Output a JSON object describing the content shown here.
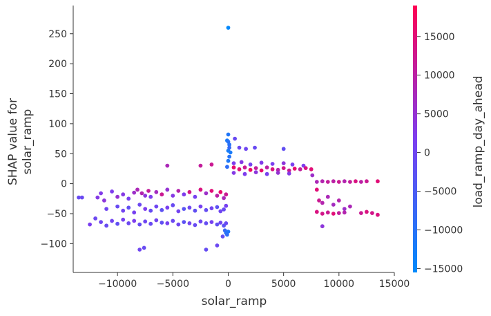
{
  "chart_data": {
    "type": "scatter",
    "title": "",
    "xlabel": "solar_ramp",
    "ylabel_lines": [
      "SHAP value for",
      "solar_ramp"
    ],
    "xlim": [
      -14000,
      15000
    ],
    "ylim": [
      -148,
      297
    ],
    "xticks": [
      -10000,
      -5000,
      0,
      5000,
      10000,
      15000
    ],
    "yticks": [
      -100,
      -50,
      0,
      50,
      100,
      150,
      200,
      250
    ],
    "grid": false,
    "colorbar": {
      "label": "load_ramp_day_ahead",
      "range": [
        -15500,
        19000
      ],
      "ticks": [
        -15000,
        -10000,
        -5000,
        0,
        5000,
        10000,
        15000
      ],
      "colors": [
        "#008afb",
        "#7c3ef0",
        "#ff0052"
      ]
    },
    "series": [
      {
        "points": [
          [
            -13500,
            -23,
            -1000
          ],
          [
            -13200,
            -23,
            -800
          ],
          [
            -11800,
            -23,
            3000
          ],
          [
            -11500,
            -16,
            2500
          ],
          [
            -11200,
            -28,
            4000
          ],
          [
            -10500,
            -13,
            2000
          ],
          [
            -10000,
            -22,
            5000
          ],
          [
            -9500,
            -18,
            3000
          ],
          [
            -9000,
            -25,
            1500
          ],
          [
            -8500,
            -15,
            6000
          ],
          [
            -8200,
            -10,
            8000
          ],
          [
            -7800,
            -16,
            9000
          ],
          [
            -7500,
            -20,
            4000
          ],
          [
            -7200,
            -12,
            11000
          ],
          [
            -7000,
            -22,
            2000
          ],
          [
            -6500,
            -14,
            7000
          ],
          [
            -6000,
            -18,
            12000
          ],
          [
            -5500,
            -10,
            5000
          ],
          [
            -5000,
            -20,
            3000
          ],
          [
            -4500,
            -12,
            9000
          ],
          [
            -4000,
            -18,
            2000
          ],
          [
            -3500,
            -14,
            13000
          ],
          [
            -3000,
            -22,
            1000
          ],
          [
            -2500,
            -10,
            14000
          ],
          [
            -2000,
            -16,
            6000
          ],
          [
            -1500,
            -12,
            15000
          ],
          [
            -1000,
            -20,
            10000
          ],
          [
            -700,
            -14,
            16000
          ],
          [
            -400,
            -24,
            8000
          ],
          [
            -200,
            -18,
            12000
          ],
          [
            -11000,
            -42,
            0
          ],
          [
            -10000,
            -38,
            -1000
          ],
          [
            -9500,
            -45,
            500
          ],
          [
            -9000,
            -40,
            -2000
          ],
          [
            -8500,
            -48,
            1000
          ],
          [
            -8000,
            -35,
            -500
          ],
          [
            -7500,
            -42,
            2000
          ],
          [
            -7000,
            -45,
            -1500
          ],
          [
            -6500,
            -38,
            0
          ],
          [
            -6000,
            -44,
            -2500
          ],
          [
            -5500,
            -40,
            1500
          ],
          [
            -5000,
            -36,
            -1000
          ],
          [
            -4500,
            -46,
            500
          ],
          [
            -4000,
            -42,
            -3000
          ],
          [
            -3500,
            -40,
            0
          ],
          [
            -3000,
            -45,
            -2000
          ],
          [
            -2500,
            -38,
            1000
          ],
          [
            -2000,
            -44,
            -1500
          ],
          [
            -1500,
            -41,
            500
          ],
          [
            -1000,
            -39,
            -2500
          ],
          [
            -700,
            -46,
            0
          ],
          [
            -400,
            -43,
            -1000
          ],
          [
            -200,
            -37,
            1000
          ],
          [
            -12500,
            -68,
            1500
          ],
          [
            -12000,
            -58,
            -500
          ],
          [
            -11500,
            -64,
            0
          ],
          [
            -11000,
            -70,
            -1000
          ],
          [
            -10500,
            -62,
            500
          ],
          [
            -10000,
            -67,
            -2000
          ],
          [
            -9500,
            -60,
            1000
          ],
          [
            -9000,
            -66,
            -500
          ],
          [
            -8500,
            -62,
            2000
          ],
          [
            -8000,
            -68,
            -1500
          ],
          [
            -7500,
            -63,
            0
          ],
          [
            -7000,
            -67,
            -1000
          ],
          [
            -6500,
            -61,
            500
          ],
          [
            -6000,
            -65,
            -2000
          ],
          [
            -5500,
            -66,
            1000
          ],
          [
            -5000,
            -62,
            -500
          ],
          [
            -4500,
            -68,
            0
          ],
          [
            -4000,
            -64,
            -2500
          ],
          [
            -3500,
            -66,
            500
          ],
          [
            -3000,
            -69,
            -1000
          ],
          [
            -2500,
            -63,
            0
          ],
          [
            -2000,
            -66,
            -1500
          ],
          [
            -1500,
            -64,
            1000
          ],
          [
            -1000,
            -68,
            -2000
          ],
          [
            -700,
            -65,
            0
          ],
          [
            -400,
            -70,
            -3000
          ],
          [
            -200,
            -66,
            -1000
          ],
          [
            -8000,
            -110,
            0
          ],
          [
            -7600,
            -107,
            -1000
          ],
          [
            -2000,
            -110,
            -1500
          ],
          [
            -1000,
            -103,
            -500
          ],
          [
            -300,
            -78,
            -8000
          ],
          [
            -200,
            -82,
            -10000
          ],
          [
            -100,
            -85,
            -9000
          ],
          [
            0,
            -80,
            -11000
          ],
          [
            -500,
            -88,
            -2000
          ],
          [
            -5500,
            30,
            8000
          ],
          [
            -2500,
            30,
            11000
          ],
          [
            -1500,
            32,
            12000
          ],
          [
            0,
            82,
            -11000
          ],
          [
            -100,
            72,
            -12000
          ],
          [
            100,
            65,
            -10000
          ],
          [
            0,
            55,
            -12500
          ],
          [
            100,
            45,
            -10500
          ],
          [
            0,
            38,
            -11500
          ],
          [
            -100,
            28,
            -9000
          ],
          [
            100,
            60,
            -8000
          ],
          [
            200,
            52,
            -12000
          ],
          [
            0,
            70,
            -10000
          ],
          [
            600,
            75,
            -1000
          ],
          [
            1000,
            60,
            -500
          ],
          [
            1600,
            58,
            0
          ],
          [
            2400,
            60,
            -1000
          ],
          [
            5000,
            58,
            -2000
          ],
          [
            5800,
            32,
            1500
          ],
          [
            6800,
            30,
            2000
          ],
          [
            500,
            34,
            2000
          ],
          [
            1200,
            36,
            3000
          ],
          [
            2000,
            32,
            1000
          ],
          [
            3000,
            35,
            2500
          ],
          [
            4000,
            33,
            1500
          ],
          [
            5000,
            34,
            4000
          ],
          [
            500,
            27,
            16000
          ],
          [
            1000,
            24,
            15000
          ],
          [
            1500,
            27,
            12000
          ],
          [
            2000,
            23,
            17000
          ],
          [
            2500,
            26,
            11000
          ],
          [
            3000,
            22,
            16000
          ],
          [
            3500,
            27,
            10000
          ],
          [
            4000,
            24,
            14000
          ],
          [
            4500,
            23,
            9000
          ],
          [
            5000,
            26,
            13000
          ],
          [
            5500,
            22,
            12000
          ],
          [
            6000,
            25,
            16000
          ],
          [
            6500,
            24,
            11000
          ],
          [
            7000,
            26,
            14000
          ],
          [
            7500,
            24,
            15000
          ],
          [
            500,
            18,
            3000
          ],
          [
            1500,
            16,
            2000
          ],
          [
            2500,
            19,
            4000
          ],
          [
            3500,
            16,
            1000
          ],
          [
            4500,
            18,
            5000
          ],
          [
            5500,
            17,
            3000
          ],
          [
            7600,
            14,
            6000
          ],
          [
            8000,
            3,
            8000
          ],
          [
            8500,
            4,
            9000
          ],
          [
            9000,
            3,
            11000
          ],
          [
            9500,
            4,
            10000
          ],
          [
            10000,
            3,
            12000
          ],
          [
            10500,
            4,
            9000
          ],
          [
            11000,
            3,
            11000
          ],
          [
            11500,
            4,
            14000
          ],
          [
            12000,
            3,
            10000
          ],
          [
            12500,
            4,
            12000
          ],
          [
            13500,
            4,
            15000
          ],
          [
            8000,
            -10,
            15000
          ],
          [
            8200,
            -28,
            12000
          ],
          [
            8500,
            -32,
            9000
          ],
          [
            9000,
            -22,
            8000
          ],
          [
            9500,
            -35,
            7000
          ],
          [
            10000,
            -28,
            9000
          ],
          [
            10500,
            -42,
            6000
          ],
          [
            11000,
            -38,
            8000
          ],
          [
            8000,
            -47,
            14000
          ],
          [
            8500,
            -50,
            13000
          ],
          [
            9000,
            -48,
            12000
          ],
          [
            9500,
            -50,
            15000
          ],
          [
            10000,
            -49,
            11000
          ],
          [
            10500,
            -48,
            9000
          ],
          [
            12000,
            -49,
            12000
          ],
          [
            12500,
            -47,
            14000
          ],
          [
            13000,
            -49,
            13000
          ],
          [
            13500,
            -52,
            14000
          ],
          [
            8500,
            -71,
            4000
          ],
          [
            0,
            260,
            -15000
          ]
        ]
      }
    ]
  }
}
